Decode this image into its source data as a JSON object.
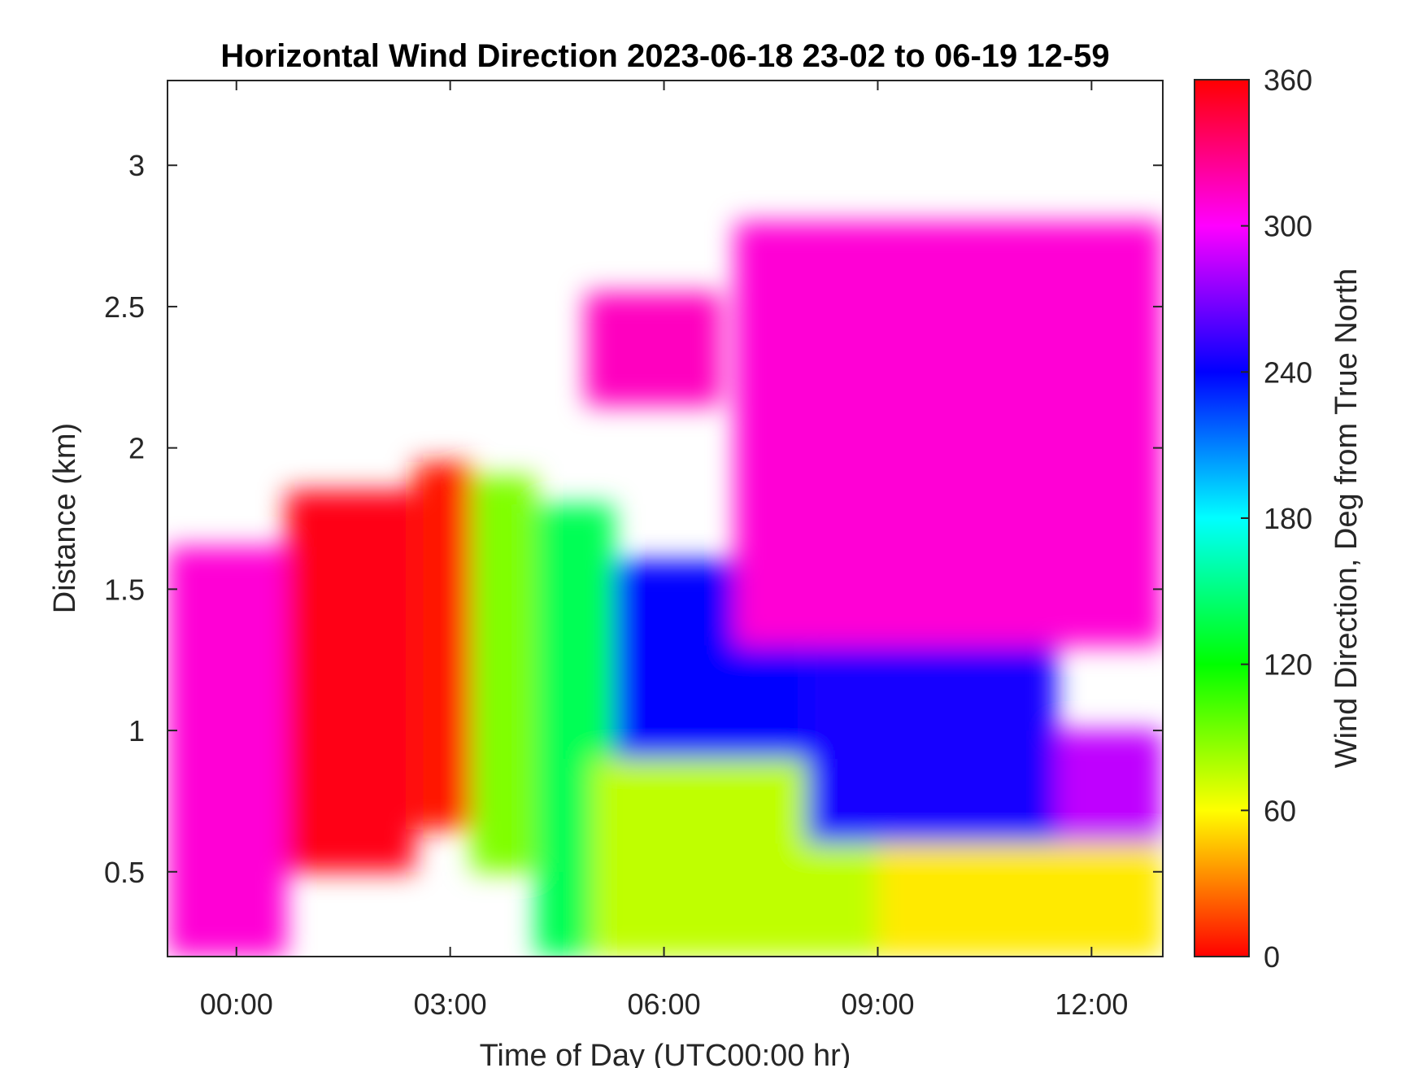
{
  "chart_data": {
    "type": "heatmap",
    "title": "Horizontal Wind Direction 2023-06-18 23-02 to 06-19 12-59",
    "xlabel": "Time of Day (UTC00:00 hr)",
    "ylabel": "Distance (km)",
    "x_ticks": [
      "00:00",
      "03:00",
      "06:00",
      "09:00",
      "12:00"
    ],
    "x_tick_values_hr": [
      0,
      3,
      6,
      9,
      12
    ],
    "xlim_hr": [
      -0.967,
      13.0
    ],
    "y_ticks": [
      "0.5",
      "1",
      "1.5",
      "2",
      "2.5",
      "3"
    ],
    "y_tick_values": [
      0.5,
      1.0,
      1.5,
      2.0,
      2.5,
      3.0
    ],
    "ylim": [
      0.2,
      3.3
    ],
    "colorbar": {
      "label": "Wind Direction, Deg from True North",
      "ticks": [
        "0",
        "60",
        "120",
        "180",
        "240",
        "300",
        "360"
      ],
      "tick_values": [
        0,
        60,
        120,
        180,
        240,
        300,
        360
      ],
      "range": [
        0,
        360
      ],
      "colormap": "hsv"
    },
    "regions": [
      {
        "x0": -0.967,
        "x1": 0.7,
        "y0": 0.2,
        "y1": 1.65,
        "direction_deg": 310
      },
      {
        "x0": 0.7,
        "x1": 2.5,
        "y0": 0.5,
        "y1": 1.85,
        "direction_deg": 355
      },
      {
        "x0": 2.5,
        "x1": 3.3,
        "y0": 0.65,
        "y1": 1.95,
        "direction_deg": 5
      },
      {
        "x0": 3.3,
        "x1": 4.2,
        "y0": 0.5,
        "y1": 1.9,
        "direction_deg": 90
      },
      {
        "x0": 4.2,
        "x1": 5.3,
        "y0": 0.2,
        "y1": 1.8,
        "direction_deg": 140
      },
      {
        "x0": 5.3,
        "x1": 8.0,
        "y0": 0.9,
        "y1": 1.6,
        "direction_deg": 240
      },
      {
        "x0": 5.0,
        "x1": 9.0,
        "y0": 0.2,
        "y1": 0.9,
        "direction_deg": 75
      },
      {
        "x0": 8.0,
        "x1": 11.5,
        "y0": 0.6,
        "y1": 1.3,
        "direction_deg": 245
      },
      {
        "x0": 9.0,
        "x1": 13.0,
        "y0": 0.2,
        "y1": 0.6,
        "direction_deg": 55
      },
      {
        "x0": 11.5,
        "x1": 13.0,
        "y0": 0.6,
        "y1": 1.0,
        "direction_deg": 285
      },
      {
        "x0": 7.0,
        "x1": 13.0,
        "y0": 1.3,
        "y1": 2.8,
        "direction_deg": 310
      },
      {
        "x0": 4.9,
        "x1": 6.8,
        "y0": 2.15,
        "y1": 2.55,
        "direction_deg": 315
      }
    ]
  }
}
